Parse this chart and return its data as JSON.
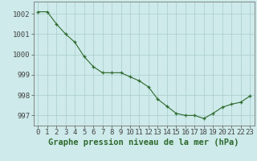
{
  "x": [
    0,
    1,
    2,
    3,
    4,
    5,
    6,
    7,
    8,
    9,
    10,
    11,
    12,
    13,
    14,
    15,
    16,
    17,
    18,
    19,
    20,
    21,
    22,
    23
  ],
  "y": [
    1002.1,
    1002.1,
    1001.5,
    1001.0,
    1000.6,
    999.9,
    999.4,
    999.1,
    999.1,
    999.1,
    998.9,
    998.7,
    998.4,
    997.8,
    997.45,
    997.1,
    997.0,
    997.0,
    996.85,
    997.1,
    997.4,
    997.55,
    997.65,
    997.95
  ],
  "line_color": "#2d6a2d",
  "marker_color": "#2d6a2d",
  "bg_color": "#ceeaea",
  "grid_color": "#aacccc",
  "axis_color": "#777777",
  "xlabel": "Graphe pression niveau de la mer (hPa)",
  "ylim": [
    996.5,
    1002.6
  ],
  "xlim": [
    -0.5,
    23.5
  ],
  "yticks": [
    997,
    998,
    999,
    1000,
    1001,
    1002
  ],
  "xtick_labels": [
    "0",
    "1",
    "2",
    "3",
    "4",
    "5",
    "6",
    "7",
    "8",
    "9",
    "10",
    "11",
    "12",
    "13",
    "14",
    "15",
    "16",
    "17",
    "18",
    "19",
    "20",
    "21",
    "22",
    "23"
  ],
  "title_fontsize": 7.5,
  "tick_fontsize": 6.5
}
